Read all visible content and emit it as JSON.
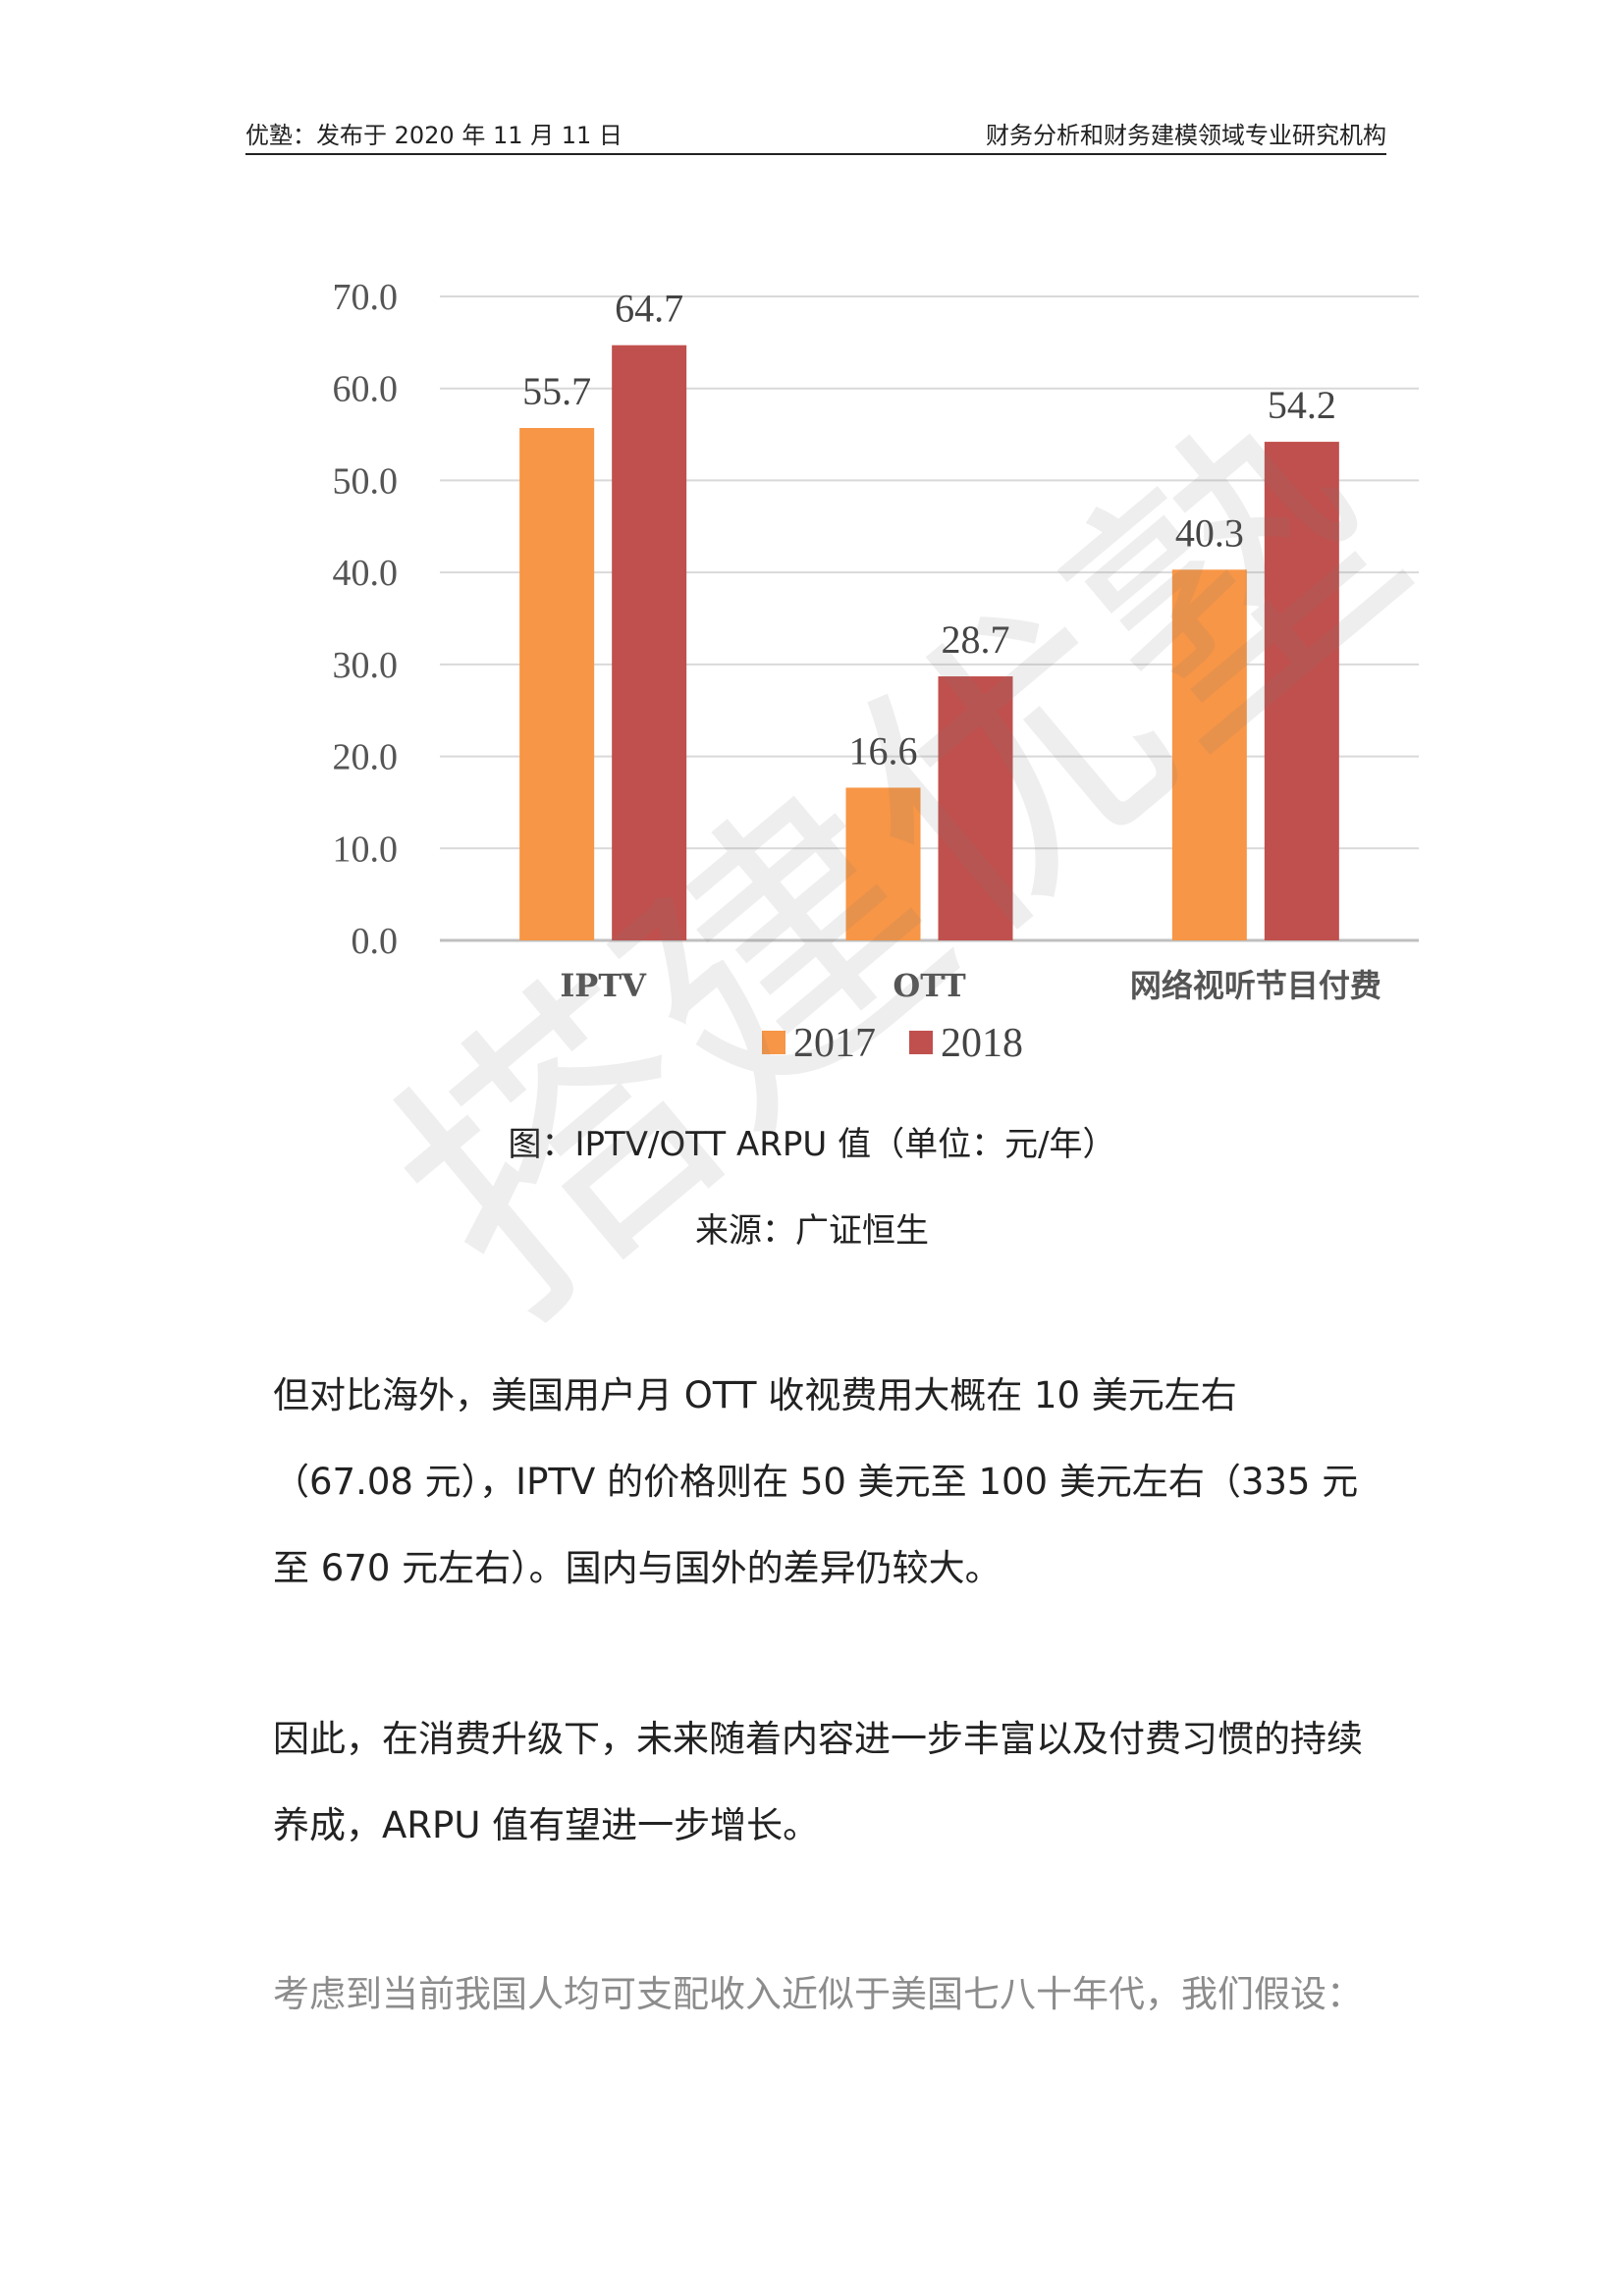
{
  "header": {
    "left": "优塾：发布于 2020 年 11 月 11 日",
    "right": "财务分析和财务建模领域专业研究机构"
  },
  "chart_data": {
    "type": "bar",
    "categories": [
      "IPTV",
      "OTT",
      "网络视听节目付费"
    ],
    "series": [
      {
        "name": "2017",
        "values": [
          55.7,
          16.6,
          40.3
        ],
        "color": "#F79646"
      },
      {
        "name": "2018",
        "values": [
          64.7,
          28.7,
          54.2
        ],
        "color": "#C0504D"
      }
    ],
    "value_labels": [
      [
        "55.7",
        "16.6",
        "40.3"
      ],
      [
        "64.7",
        "28.7",
        "54.2"
      ]
    ],
    "ylim": [
      0,
      70
    ],
    "yticks": [
      "0.0",
      "10.0",
      "20.0",
      "30.0",
      "40.0",
      "50.0",
      "60.0",
      "70.0"
    ],
    "grid": true,
    "legend_position": "bottom"
  },
  "caption": {
    "figure": "图：IPTV/OTT ARPU 值（单位：元/年）",
    "source": "来源：广证恒生"
  },
  "paragraphs": {
    "p1": "但对比海外，美国用户月 OTT 收视费用大概在 10 美元左右（67.08 元），IPTV 的价格则在 50 美元至 100 美元左右（335 元至 670 元左右）。国内与国外的差异仍较大。",
    "p2": "因此，在消费升级下，未来随着内容进一步丰富以及付费习惯的持续养成，ARPU 值有望进一步增长。",
    "p3": "考虑到当前我国人均可支配收入近似于美国七八十年代，我们假设："
  },
  "watermark": "搭建优塾"
}
